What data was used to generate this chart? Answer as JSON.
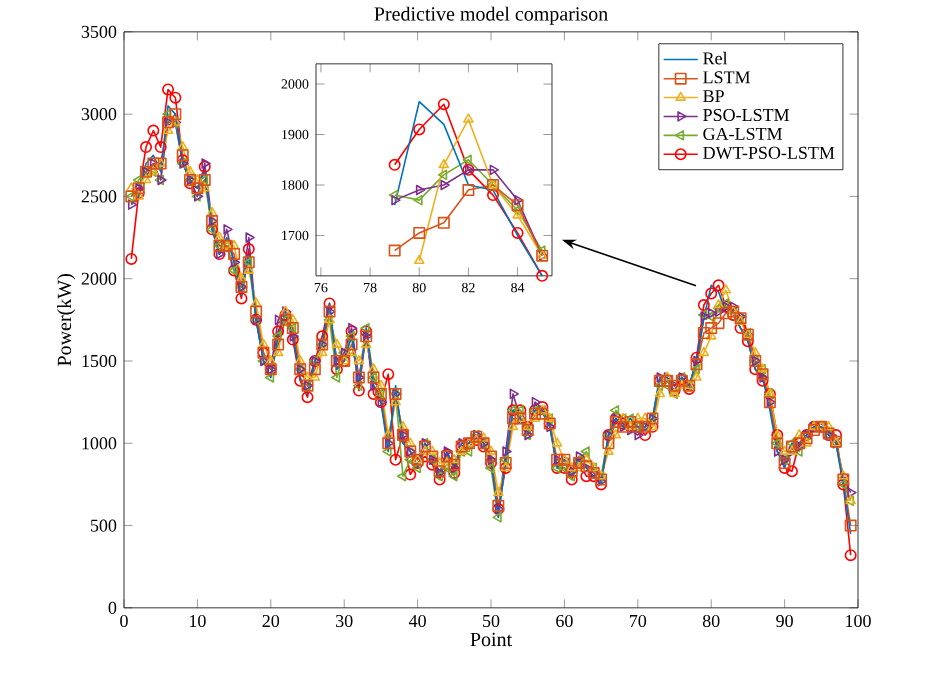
{
  "chart_data": [
    {
      "type": "line",
      "title": "Predictive model comparison",
      "xlabel": "Point",
      "ylabel": "Power(kW)",
      "xlim": [
        0,
        100
      ],
      "ylim": [
        0,
        3500
      ],
      "xticks": [
        0,
        10,
        20,
        30,
        40,
        50,
        60,
        70,
        80,
        90,
        100
      ],
      "yticks": [
        0,
        500,
        1000,
        1500,
        2000,
        2500,
        3000,
        3500
      ],
      "legend": "top right",
      "x": [
        1,
        2,
        3,
        4,
        5,
        6,
        7,
        8,
        9,
        10,
        11,
        12,
        13,
        14,
        15,
        16,
        17,
        18,
        19,
        20,
        21,
        22,
        23,
        24,
        25,
        26,
        27,
        28,
        29,
        30,
        31,
        32,
        33,
        34,
        35,
        36,
        37,
        38,
        39,
        40,
        41,
        42,
        43,
        44,
        45,
        46,
        47,
        48,
        49,
        50,
        51,
        52,
        53,
        54,
        55,
        56,
        57,
        58,
        59,
        60,
        61,
        62,
        63,
        64,
        65,
        66,
        67,
        68,
        69,
        70,
        71,
        72,
        73,
        74,
        75,
        76,
        77,
        78,
        79,
        80,
        81,
        82,
        83,
        84,
        85,
        86,
        87,
        88,
        89,
        90,
        91,
        92,
        93,
        94,
        95,
        96,
        97,
        98,
        99
      ],
      "series": [
        {
          "name": "Rel",
          "color": "#0072bd",
          "marker": "none",
          "values": [
            2450,
            2500,
            2700,
            2750,
            2650,
            3050,
            3000,
            2700,
            2600,
            2550,
            2650,
            2300,
            2150,
            2250,
            2100,
            1900,
            2150,
            1750,
            1500,
            1400,
            1650,
            1800,
            1650,
            1400,
            1300,
            1500,
            1600,
            1850,
            1450,
            1500,
            1650,
            1350,
            1700,
            1350,
            1250,
            950,
            1350,
            1000,
            950,
            850,
            1000,
            900,
            800,
            950,
            850,
            1000,
            1000,
            1050,
            1000,
            900,
            550,
            900,
            1200,
            1150,
            1050,
            1200,
            1200,
            1100,
            850,
            900,
            800,
            900,
            850,
            800,
            750,
            1050,
            1150,
            1100,
            1150,
            1100,
            1100,
            1150,
            1400,
            1400,
            1350,
            1400,
            1350,
            1500,
            1760,
            1960,
            1920,
            1800,
            1790,
            1700,
            1620,
            1450,
            1400,
            1200,
            950,
            850,
            1000,
            1000,
            1050,
            1100,
            1100,
            1050,
            1000,
            750,
            450
          ]
        },
        {
          "name": "LSTM",
          "color": "#d95319",
          "marker": "square",
          "values": [
            2500,
            2550,
            2650,
            2700,
            2700,
            2950,
            3000,
            2750,
            2600,
            2550,
            2600,
            2350,
            2200,
            2200,
            2150,
            1950,
            2100,
            1800,
            1550,
            1450,
            1600,
            1750,
            1700,
            1450,
            1350,
            1450,
            1600,
            1800,
            1500,
            1500,
            1600,
            1400,
            1650,
            1400,
            1300,
            1000,
            1300,
            1050,
            950,
            900,
            980,
            920,
            830,
            920,
            870,
            980,
            1000,
            1040,
            1000,
            920,
            620,
            880,
            1150,
            1150,
            1080,
            1180,
            1180,
            1120,
            900,
            900,
            830,
            880,
            860,
            820,
            780,
            1000,
            1130,
            1100,
            1130,
            1100,
            1100,
            1150,
            1380,
            1380,
            1350,
            1380,
            1350,
            1480,
            1670,
            1700,
            1730,
            1790,
            1800,
            1760,
            1660,
            1500,
            1420,
            1250,
            1000,
            880,
            980,
            1000,
            1030,
            1080,
            1100,
            1060,
            1010,
            780,
            500
          ]
        },
        {
          "name": "BP",
          "color": "#edb120",
          "marker": "triangle",
          "values": [
            2550,
            2500,
            2600,
            2650,
            2700,
            2900,
            2950,
            2800,
            2650,
            2600,
            2550,
            2400,
            2250,
            2200,
            2200,
            2000,
            2050,
            1850,
            1600,
            1500,
            1550,
            1800,
            1750,
            1500,
            1400,
            1400,
            1550,
            1750,
            1600,
            1500,
            1550,
            1500,
            1600,
            1450,
            1350,
            1050,
            1250,
            1100,
            1000,
            900,
            950,
            950,
            880,
            880,
            900,
            950,
            1000,
            1020,
            1030,
            950,
            700,
            850,
            1100,
            1150,
            1100,
            1150,
            1200,
            1150,
            1000,
            900,
            850,
            850,
            900,
            850,
            800,
            950,
            1050,
            1150,
            1100,
            1150,
            1150,
            1100,
            1300,
            1400,
            1300,
            1350,
            1350,
            1400,
            1550,
            1650,
            1840,
            1930,
            1800,
            1740,
            1660,
            1550,
            1450,
            1300,
            1050,
            950,
            950,
            1050,
            1000,
            1100,
            1100,
            1100,
            1000,
            800,
            650
          ]
        },
        {
          "name": "PSO-LSTM",
          "color": "#7e2f8e",
          "marker": "triangle-right",
          "values": [
            2450,
            2550,
            2650,
            2700,
            2600,
            2950,
            2950,
            2700,
            2600,
            2500,
            2700,
            2350,
            2150,
            2300,
            2100,
            1950,
            2250,
            1750,
            1500,
            1450,
            1750,
            1800,
            1650,
            1450,
            1350,
            1500,
            1600,
            1800,
            1500,
            1550,
            1700,
            1400,
            1650,
            1350,
            1250,
            1000,
            1300,
            1050,
            950,
            900,
            1000,
            900,
            820,
            950,
            850,
            1000,
            1000,
            1050,
            1000,
            900,
            600,
            950,
            1300,
            1150,
            1050,
            1250,
            1200,
            1100,
            900,
            900,
            830,
            920,
            850,
            820,
            770,
            1050,
            1150,
            1100,
            1080,
            1050,
            1100,
            1150,
            1400,
            1400,
            1350,
            1400,
            1350,
            1500,
            1770,
            1790,
            1800,
            1830,
            1830,
            1770,
            1660,
            1500,
            1400,
            1250,
            950,
            900,
            950,
            980,
            1050,
            1100,
            1100,
            1050,
            1000,
            800,
            700
          ]
        },
        {
          "name": "GA-LSTM",
          "color": "#77ac30",
          "marker": "triangle-left",
          "values": [
            2500,
            2600,
            2650,
            2650,
            2600,
            3000,
            2950,
            2700,
            2600,
            2500,
            2600,
            2300,
            2200,
            2200,
            2050,
            1950,
            2100,
            1750,
            1500,
            1400,
            1650,
            1750,
            1700,
            1450,
            1350,
            1500,
            1600,
            1750,
            1400,
            1550,
            1650,
            1350,
            1700,
            1400,
            1300,
            950,
            1300,
            800,
            900,
            850,
            1000,
            900,
            800,
            850,
            800,
            950,
            950,
            1050,
            1000,
            850,
            550,
            900,
            1200,
            1200,
            1050,
            1200,
            1200,
            1150,
            850,
            850,
            800,
            900,
            950,
            850,
            800,
            1050,
            1200,
            1150,
            1150,
            1100,
            1100,
            1150,
            1350,
            1350,
            1300,
            1400,
            1350,
            1450,
            1780,
            1770,
            1820,
            1850,
            1800,
            1750,
            1670,
            1500,
            1450,
            1300,
            1000,
            900,
            1000,
            950,
            1050,
            1100,
            1100,
            1050,
            1000,
            750,
            650
          ]
        },
        {
          "name": "DWT-PSO-LSTM",
          "color": "#ff0000",
          "marker": "circle",
          "values": [
            2120,
            2520,
            2800,
            2900,
            2800,
            3150,
            3100,
            2720,
            2580,
            2550,
            2680,
            2300,
            2150,
            2200,
            2050,
            1880,
            2180,
            1750,
            1550,
            1450,
            1680,
            1780,
            1630,
            1380,
            1280,
            1500,
            1650,
            1850,
            1450,
            1500,
            1680,
            1320,
            1680,
            1300,
            1250,
            1420,
            900,
            1050,
            810,
            880,
            920,
            870,
            780,
            930,
            820,
            980,
            1000,
            1020,
            980,
            880,
            600,
            850,
            1200,
            1200,
            1100,
            1200,
            1220,
            1120,
            850,
            850,
            780,
            880,
            800,
            800,
            750,
            1050,
            1150,
            1120,
            1100,
            1100,
            1050,
            1100,
            1380,
            1380,
            1320,
            1390,
            1330,
            1520,
            1840,
            1910,
            1960,
            1830,
            1780,
            1700,
            1620,
            1450,
            1380,
            1300,
            1050,
            850,
            830,
            1000,
            1050,
            1100,
            1100,
            1050,
            1050,
            750,
            320
          ]
        }
      ]
    },
    {
      "type": "line",
      "xlim": [
        75.8,
        85.4
      ],
      "ylim": [
        1620,
        2040
      ],
      "xticks": [
        76,
        78,
        80,
        82,
        84
      ],
      "yticks": [
        1700,
        1800,
        1900,
        2000
      ],
      "x": [
        79,
        80,
        81,
        82,
        83,
        84,
        85
      ],
      "series": [
        {
          "color": "#0072bd",
          "marker": "none",
          "values": [
            1760,
            1965,
            1920,
            1800,
            1790,
            1700,
            1620
          ]
        },
        {
          "color": "#d95319",
          "marker": "square",
          "values": [
            1670,
            1705,
            1725,
            1790,
            1800,
            1760,
            1660
          ]
        },
        {
          "color": "#edb120",
          "marker": "triangle",
          "x": [
            80,
            81,
            82,
            83,
            84,
            85
          ],
          "values": [
            1650,
            1840,
            1930,
            1800,
            1740,
            1660
          ]
        },
        {
          "color": "#7e2f8e",
          "marker": "triangle-right",
          "values": [
            1770,
            1790,
            1800,
            1830,
            1830,
            1770,
            1660
          ]
        },
        {
          "color": "#77ac30",
          "marker": "triangle-left",
          "values": [
            1780,
            1770,
            1820,
            1850,
            1800,
            1750,
            1670
          ]
        },
        {
          "color": "#ff0000",
          "marker": "circle",
          "values": [
            1840,
            1910,
            1960,
            1830,
            1780,
            1705,
            1620
          ]
        }
      ]
    }
  ]
}
